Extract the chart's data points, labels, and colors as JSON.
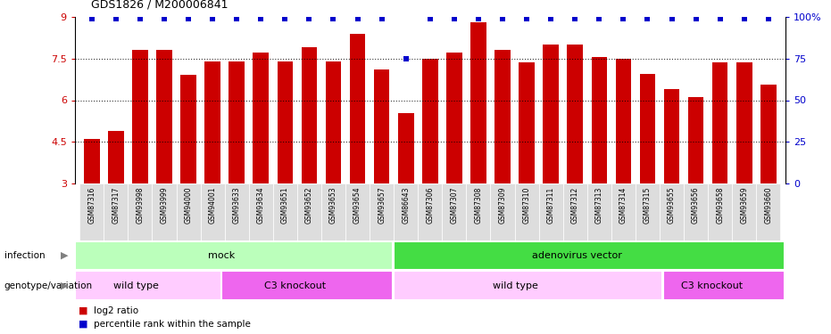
{
  "title": "GDS1826 / M200006841",
  "samples": [
    "GSM87316",
    "GSM87317",
    "GSM93998",
    "GSM93999",
    "GSM94000",
    "GSM94001",
    "GSM93633",
    "GSM93634",
    "GSM93651",
    "GSM93652",
    "GSM93653",
    "GSM93654",
    "GSM93657",
    "GSM86643",
    "GSM87306",
    "GSM87307",
    "GSM87308",
    "GSM87309",
    "GSM87310",
    "GSM87311",
    "GSM87312",
    "GSM87313",
    "GSM87314",
    "GSM87315",
    "GSM93655",
    "GSM93656",
    "GSM93658",
    "GSM93659",
    "GSM93660"
  ],
  "bar_values": [
    4.6,
    4.9,
    7.8,
    7.8,
    6.9,
    7.4,
    7.4,
    7.7,
    7.4,
    7.9,
    7.4,
    8.4,
    7.1,
    5.55,
    7.5,
    7.7,
    8.8,
    7.8,
    7.35,
    8.0,
    8.0,
    7.55,
    7.5,
    6.95,
    6.4,
    6.1,
    7.35,
    7.35,
    6.55
  ],
  "percentile_values": [
    99,
    99,
    99,
    99,
    99,
    99,
    99,
    99,
    99,
    99,
    99,
    99,
    99,
    75,
    99,
    99,
    99,
    99,
    99,
    99,
    99,
    99,
    99,
    99,
    99,
    99,
    99,
    99,
    99
  ],
  "bar_color": "#cc0000",
  "percentile_color": "#0000cc",
  "ymin": 3.0,
  "ymax": 9.0,
  "yticks": [
    3.0,
    4.5,
    6.0,
    7.5,
    9.0
  ],
  "ytick_labels": [
    "3",
    "4.5",
    "6",
    "7.5",
    "9"
  ],
  "right_yticks": [
    0,
    25,
    50,
    75,
    100
  ],
  "right_ytick_labels": [
    "0",
    "25",
    "50",
    "75",
    "100%"
  ],
  "infection_groups": [
    {
      "label": "mock",
      "start": 0,
      "end": 12,
      "color": "#bbffbb"
    },
    {
      "label": "adenovirus vector",
      "start": 13,
      "end": 28,
      "color": "#44dd44"
    }
  ],
  "genotype_groups": [
    {
      "label": "wild type",
      "start": 0,
      "end": 5,
      "color": "#ffccff"
    },
    {
      "label": "C3 knockout",
      "start": 6,
      "end": 12,
      "color": "#ee66ee"
    },
    {
      "label": "wild type",
      "start": 13,
      "end": 23,
      "color": "#ffccff"
    },
    {
      "label": "C3 knockout",
      "start": 24,
      "end": 28,
      "color": "#ee66ee"
    }
  ],
  "infection_label": "infection",
  "genotype_label": "genotype/variation",
  "legend_items": [
    {
      "color": "#cc0000",
      "label": "log2 ratio"
    },
    {
      "color": "#0000cc",
      "label": "percentile rank within the sample"
    }
  ]
}
